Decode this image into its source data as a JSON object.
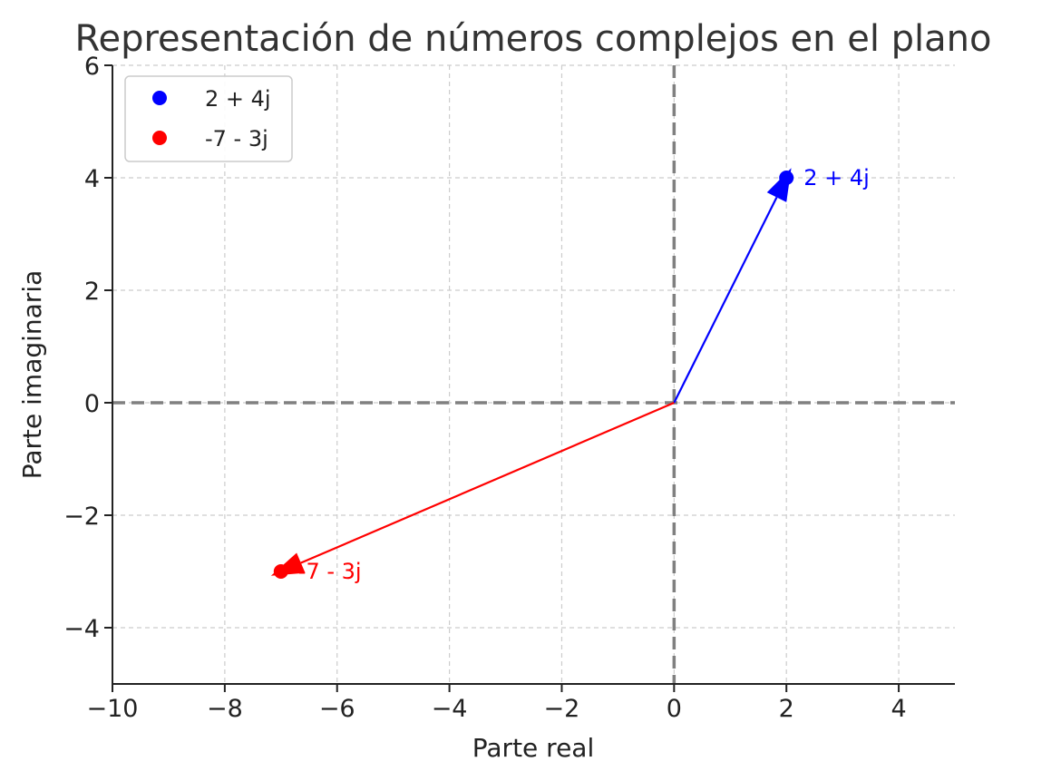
{
  "chart_data": {
    "type": "line",
    "title": "Representación de números complejos en el plano",
    "xlabel": "Parte real",
    "ylabel": "Parte imaginaria",
    "xlim": [
      -10,
      5
    ],
    "ylim": [
      -5,
      6
    ],
    "xticks": [
      -10,
      -8,
      -6,
      -4,
      -2,
      0,
      2,
      4
    ],
    "yticks": [
      -4,
      -2,
      0,
      2,
      4,
      6
    ],
    "xtick_labels": [
      "−10",
      "−8",
      "−6",
      "−4",
      "−2",
      "0",
      "2",
      "4"
    ],
    "ytick_labels": [
      "−4",
      "−2",
      "0",
      "2",
      "4",
      "6"
    ],
    "grid": true,
    "reference_lines": {
      "x": 0,
      "y": 0,
      "style": "dashed",
      "color": "#808080"
    },
    "legend": {
      "placement": "upper-left"
    },
    "series": [
      {
        "name": "2 + 4j",
        "x": 2,
        "y": 4,
        "color": "#0000ff",
        "annotation": "2 + 4j"
      },
      {
        "name": "-7 - 3j",
        "x": -7,
        "y": -3,
        "color": "#ff0000",
        "annotation": "-7 - 3j"
      }
    ]
  }
}
